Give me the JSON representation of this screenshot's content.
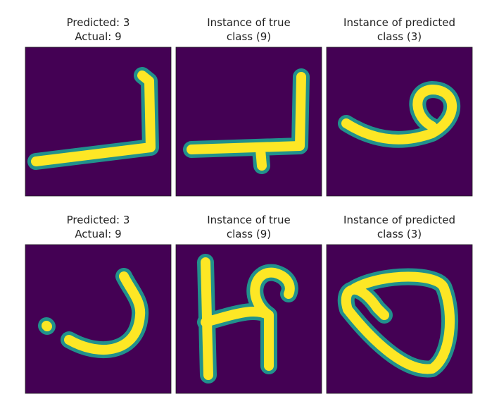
{
  "panels": [
    {
      "title_lines": [
        "Predicted: 3",
        "Actual: 9"
      ]
    },
    {
      "title_lines": [
        "Instance of true",
        "class (9)"
      ]
    },
    {
      "title_lines": [
        "Instance of predicted",
        "class (3)"
      ]
    },
    {
      "title_lines": [
        "Predicted: 3",
        "Actual: 9"
      ]
    },
    {
      "title_lines": [
        "Instance of true",
        "class (9)"
      ]
    },
    {
      "title_lines": [
        "Instance of predicted",
        "class (3)"
      ]
    }
  ]
}
